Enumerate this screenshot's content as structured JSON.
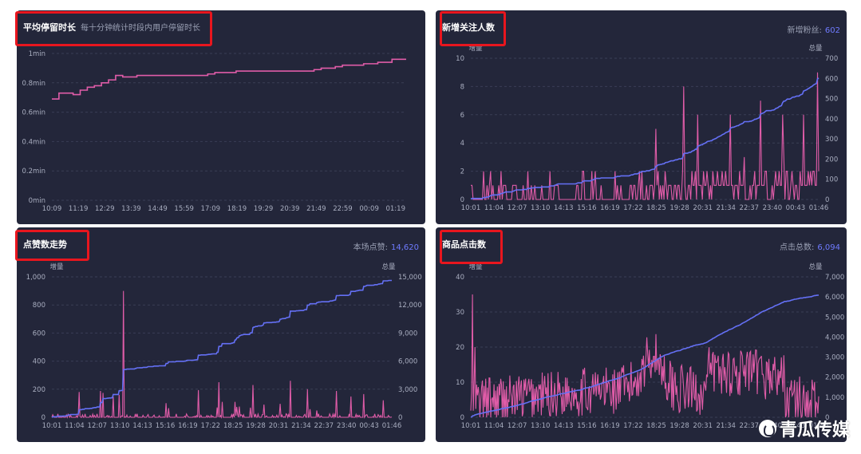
{
  "panels": [
    {
      "id": "stay",
      "title": "平均停留时长",
      "subtitle": "每十分钟统计时段内用户停留时长",
      "right_label": "",
      "right_value": ""
    },
    {
      "id": "follow",
      "title": "新增关注人数",
      "subtitle": "",
      "right_label": "新增粉丝:",
      "right_value": "602"
    },
    {
      "id": "likes",
      "title": "点赞数走势",
      "subtitle": "",
      "right_label": "本场点赞:",
      "right_value": "14,620"
    },
    {
      "id": "clicks",
      "title": "商品点击数",
      "subtitle": "",
      "right_label": "点击总数:",
      "right_value": "6,094"
    }
  ],
  "watermark": "青瓜传媒",
  "colors": {
    "background": "#23263a",
    "pink": "#e05ca8",
    "blue": "#6470f5",
    "axis_text": "#a9aec0",
    "grid": "#3a3e55",
    "highlight_box": "#e8161e"
  },
  "chart_data": [
    {
      "type": "line",
      "title": "平均停留时长",
      "x_ticks": [
        "10:09",
        "11:19",
        "12:29",
        "13:39",
        "14:49",
        "15:59",
        "17:09",
        "18:19",
        "19:29",
        "20:39",
        "21:49",
        "22:59",
        "00:09",
        "01:19"
      ],
      "y_ticks": [
        "0min",
        "0.2min",
        "0.4min",
        "0.6min",
        "0.8min",
        "1min"
      ],
      "ylim": [
        0,
        1
      ],
      "series": [
        {
          "color": "#e05ca8",
          "values": [
            0.69,
            0.73,
            0.73,
            0.72,
            0.75,
            0.77,
            0.78,
            0.8,
            0.82,
            0.85,
            0.84,
            0.84,
            0.85,
            0.85,
            0.85,
            0.85,
            0.85,
            0.85,
            0.85,
            0.85,
            0.85,
            0.85,
            0.86,
            0.87,
            0.87,
            0.87,
            0.88,
            0.88,
            0.88,
            0.88,
            0.88,
            0.88,
            0.88,
            0.88,
            0.88,
            0.88,
            0.88,
            0.89,
            0.9,
            0.9,
            0.91,
            0.92,
            0.92,
            0.92,
            0.93,
            0.93,
            0.94,
            0.94,
            0.96,
            0.96,
            0.96
          ]
        }
      ]
    },
    {
      "type": "bar+line",
      "title": "新增关注人数",
      "left_axis_label": "增量",
      "right_axis_label": "总量",
      "x_ticks": [
        "10:01",
        "11:04",
        "12:07",
        "13:10",
        "14:13",
        "15:16",
        "16:19",
        "17:22",
        "18:25",
        "19:28",
        "20:31",
        "21:34",
        "22:37",
        "23:40",
        "00:43",
        "01:46"
      ],
      "y_left_ticks": [
        "0",
        "2",
        "4",
        "6",
        "8",
        "10"
      ],
      "y_right_ticks": [
        "0",
        "100",
        "200",
        "300",
        "400",
        "500",
        "600",
        "700"
      ],
      "ylim_left": [
        0,
        10
      ],
      "ylim_right": [
        0,
        700
      ],
      "total_end": 602
    },
    {
      "type": "bar+line",
      "title": "点赞数走势",
      "left_axis_label": "增量",
      "right_axis_label": "总量",
      "x_ticks": [
        "10:01",
        "11:04",
        "12:07",
        "13:10",
        "14:13",
        "15:16",
        "16:19",
        "17:22",
        "18:25",
        "19:28",
        "20:31",
        "21:34",
        "22:37",
        "23:40",
        "00:43",
        "01:46"
      ],
      "y_left_ticks": [
        "0",
        "200",
        "400",
        "600",
        "800",
        "1,000"
      ],
      "y_right_ticks": [
        "0",
        "3,000",
        "6,000",
        "9,000",
        "12,000",
        "15,000"
      ],
      "ylim_left": [
        0,
        1000
      ],
      "ylim_right": [
        0,
        15000
      ],
      "total_end": 14620
    },
    {
      "type": "bar+line",
      "title": "商品点击数",
      "left_axis_label": "增量",
      "right_axis_label": "总量",
      "x_ticks": [
        "10:01",
        "11:04",
        "12:07",
        "13:10",
        "14:13",
        "15:16",
        "16:19",
        "17:22",
        "18:25",
        "19:28",
        "20:31",
        "21:34",
        "22:37",
        "23:40",
        "00:43",
        "01:46"
      ],
      "y_left_ticks": [
        "0",
        "10",
        "20",
        "30",
        "40"
      ],
      "y_right_ticks": [
        "0",
        "1,000",
        "2,000",
        "3,000",
        "4,000",
        "5,000",
        "6,000",
        "7,000"
      ],
      "ylim_left": [
        0,
        40
      ],
      "ylim_right": [
        0,
        7000
      ],
      "total_end": 6094
    }
  ]
}
